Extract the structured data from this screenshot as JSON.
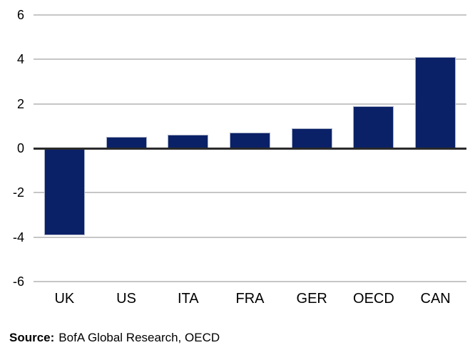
{
  "chart_data": {
    "type": "bar",
    "categories": [
      "UK",
      "US",
      "ITA",
      "FRA",
      "GER",
      "OECD",
      "CAN"
    ],
    "values": [
      -3.9,
      0.5,
      0.6,
      0.7,
      0.9,
      1.9,
      4.1
    ],
    "title": "",
    "xlabel": "",
    "ylabel": "",
    "ylim": [
      -6,
      6
    ],
    "yticks": [
      6,
      4,
      2,
      0,
      -2,
      -4,
      -6
    ],
    "grid": true,
    "legend": "none",
    "bar_color": "#0a2167",
    "bar_edge_color": "#a9b0c6",
    "gridline_color": "#c6c6c6",
    "zero_line_color": "#2a2a2a",
    "tick_label_color": "#000000"
  },
  "source": {
    "label": "Source:",
    "text": "BofA Global Research, OECD"
  }
}
